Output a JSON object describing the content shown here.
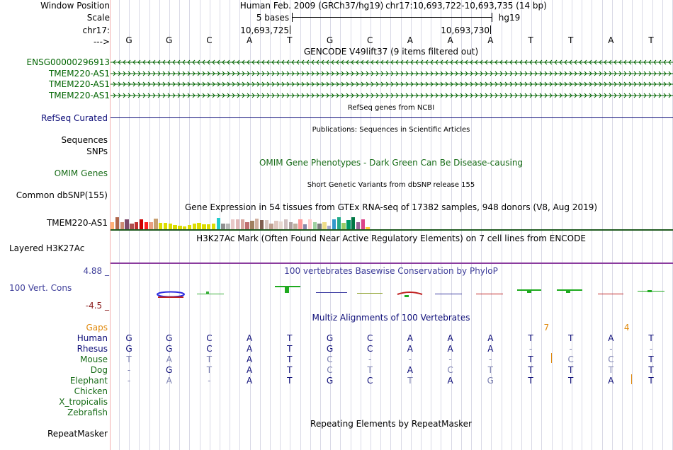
{
  "colors": {
    "gencode": "#006400",
    "refseq": "#0c0c78",
    "omim": "#166b16",
    "phylop_label": "#3e3e9a",
    "phylop_low": "#8b1d1d",
    "gaps": "#e0890c",
    "species_primate": "#0c0c78",
    "species_other": "#166b16",
    "h3k27ac_line": "#8b3c9e",
    "gtex_line": "#1e5a1e",
    "base_faint": "#7a7fb0"
  },
  "ruler": {
    "window_label": "Window Position",
    "scale_label": "Scale",
    "chrom_label": "chr17:",
    "arrow_label": "--->",
    "assembly_text": "Human Feb. 2009 (GRCh37/hg19)",
    "position_text": "chr17:10,693,722-10,693,735 (14 bp)",
    "scale_text": "5 bases",
    "db_text": "hg19",
    "tick_left": "10,693,725",
    "tick_right": "10,693,730"
  },
  "sequence": [
    "G",
    "G",
    "C",
    "A",
    "T",
    "G",
    "C",
    "A",
    "A",
    "A",
    "T",
    "T",
    "A",
    "T"
  ],
  "tracks": {
    "gencode": {
      "title": "GENCODE V49lift37 (9 items filtered out)",
      "items": [
        "ENSG00000296913",
        "TMEM220-AS1",
        "TMEM220-AS1",
        "TMEM220-AS1"
      ],
      "strands": [
        "-",
        "+",
        "+",
        "+"
      ]
    },
    "refseq": {
      "label": "RefSeq Curated",
      "title": "RefSeq genes from NCBI"
    },
    "publications": {
      "label_sequences": "Sequences",
      "title": "Publications: Sequences in Scientific Articles"
    },
    "snps": {
      "label": "SNPs"
    },
    "omim": {
      "label": "OMIM Genes",
      "title": "OMIM Gene Phenotypes - Dark Green Can Be Disease-causing"
    },
    "dbsnp": {
      "label": "Common dbSNP(155)",
      "title": "Short Genetic Variants from dbSNP release 155"
    },
    "gtex": {
      "label": "TMEM220-AS1",
      "title": "Gene Expression in 54 tissues from GTEx RNA-seq of 17382 samples, 948 donors (V8, Aug 2019)",
      "values": [
        0.55,
        0.95,
        0.55,
        0.75,
        0.45,
        0.55,
        0.75,
        0.55,
        0.55,
        0.85,
        0.5,
        0.5,
        0.45,
        0.35,
        0.3,
        0.2,
        0.35,
        0.45,
        0.5,
        0.4,
        0.4,
        0.45,
        0.9,
        0.45,
        0.45,
        0.8,
        0.8,
        0.8,
        0.55,
        0.65,
        0.85,
        0.7,
        0.7,
        0.45,
        0.65,
        0.6,
        0.75,
        0.55,
        0.45,
        0.75,
        0.4,
        0.75,
        0.55,
        0.45,
        0.55,
        0.25,
        0.75,
        0.95,
        0.5,
        0.7,
        0.95,
        0.55,
        0.8,
        0.15
      ],
      "colors": [
        "#ffb077",
        "#b0664a",
        "#cd8b72",
        "#7b4a6b",
        "#b05050",
        "#c03030",
        "#d00000",
        "#ff2020",
        "#eaa080",
        "#c8a070",
        "#dddd00",
        "#dddd00",
        "#dddd00",
        "#dddd00",
        "#dddd00",
        "#dddd00",
        "#dddd00",
        "#dddd00",
        "#dddd00",
        "#dddd00",
        "#dddd00",
        "#dddd00",
        "#22cccc",
        "#909090",
        "#b8b8b8",
        "#e8c8c8",
        "#e0b8b8",
        "#d8a8a0",
        "#c07070",
        "#a08060",
        "#d0b0a0",
        "#806050",
        "#d8c8c0",
        "#c0a090",
        "#e0c8c0",
        "#e8d8d0",
        "#d0c0c0",
        "#b0a0a0",
        "#c0b0a0",
        "#ff9999",
        "#8888aa",
        "#ffcccc",
        "#9fd0a0",
        "#7f7f7f",
        "#eedd88",
        "#aaaacc",
        "#3399cc",
        "#22aa88",
        "#99cc66",
        "#009966",
        "#007744",
        "#996699",
        "#dd4488",
        "#ffcc33"
      ]
    },
    "h3k27ac": {
      "label": "Layered H3K27Ac",
      "title": "H3K27Ac Mark (Often Found Near Active Regulatory Elements) on 7 cell lines from ENCODE"
    },
    "phylop": {
      "label": "100 Vert. Cons",
      "max_label": "4.88 _",
      "min_label": "-4.5 _",
      "title": "100 vertebrates Basewise Conservation by PhyloP"
    },
    "multiz": {
      "title": "Multiz Alignments of 100 Vertebrates",
      "gaps_label": "Gaps",
      "gap_counts": [
        {
          "col": 10.5,
          "text": "7"
        },
        {
          "col": 12.5,
          "text": "4"
        }
      ],
      "species": [
        {
          "name": "Human",
          "kind": "primate",
          "bases": [
            "G",
            "G",
            "C",
            "A",
            "T",
            "G",
            "C",
            "A",
            "A",
            "A",
            "T",
            "T",
            "A",
            "T"
          ]
        },
        {
          "name": "Rhesus",
          "kind": "primate",
          "bases": [
            "G",
            "G",
            "C",
            "A",
            "T",
            "G",
            "C",
            "A",
            "A",
            "A",
            "-",
            "-",
            "-",
            "-"
          ]
        },
        {
          "name": "Mouse",
          "kind": "other",
          "bases": [
            "T",
            "A",
            "T",
            "A",
            "T",
            "C",
            "-",
            "-",
            "-",
            "-",
            "T",
            "C",
            "C",
            "T"
          ]
        },
        {
          "name": "Dog",
          "kind": "other",
          "bases": [
            "-",
            "G",
            "T",
            "A",
            "T",
            "C",
            "T",
            "A",
            "C",
            "T",
            "T",
            "T",
            "T",
            "T"
          ]
        },
        {
          "name": "Elephant",
          "kind": "other",
          "bases": [
            "-",
            "A",
            "-",
            "A",
            "T",
            "G",
            "C",
            "T",
            "A",
            "G",
            "T",
            "T",
            "A",
            "T"
          ]
        },
        {
          "name": "Chicken",
          "kind": "other",
          "bases": []
        },
        {
          "name": "X_tropicalis",
          "kind": "other",
          "bases": []
        },
        {
          "name": "Zebrafish",
          "kind": "other",
          "bases": []
        }
      ]
    },
    "repeatmasker": {
      "label": "RepeatMasker",
      "title": "Repeating Elements by RepeatMasker"
    }
  }
}
